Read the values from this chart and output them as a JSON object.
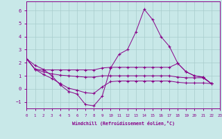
{
  "background_color": "#c8e8e8",
  "line_color": "#880088",
  "grid_color": "#a8cccc",
  "xlabel": "Windchill (Refroidissement éolien,°C)",
  "xlim": [
    0,
    23
  ],
  "ylim": [
    -1.5,
    6.7
  ],
  "xticks": [
    0,
    1,
    2,
    3,
    4,
    5,
    6,
    7,
    8,
    9,
    10,
    11,
    12,
    13,
    14,
    15,
    16,
    17,
    18,
    19,
    20,
    21,
    22,
    23
  ],
  "yticks": [
    -1,
    0,
    1,
    2,
    3,
    4,
    5,
    6
  ],
  "series": [
    {
      "x": [
        0,
        1,
        2,
        3,
        4,
        5,
        6,
        7,
        8,
        9,
        10,
        11,
        12,
        13,
        14,
        15,
        16,
        17,
        18,
        19,
        20,
        21,
        22
      ],
      "y": [
        2.3,
        1.8,
        1.5,
        1.0,
        0.3,
        -0.2,
        -0.4,
        -1.2,
        -1.3,
        -0.55,
        1.6,
        2.65,
        3.0,
        4.35,
        6.1,
        5.3,
        4.0,
        3.25,
        1.95,
        1.3,
        1.0,
        0.9,
        0.4
      ]
    },
    {
      "x": [
        0,
        1,
        2,
        3,
        4,
        5,
        6,
        7,
        8,
        9,
        10,
        11,
        12,
        13,
        14,
        15,
        16,
        17,
        18,
        19,
        20,
        21,
        22
      ],
      "y": [
        2.3,
        1.5,
        1.45,
        1.45,
        1.45,
        1.45,
        1.45,
        1.45,
        1.45,
        1.6,
        1.65,
        1.65,
        1.65,
        1.65,
        1.65,
        1.65,
        1.65,
        1.65,
        1.95,
        1.3,
        1.0,
        0.9,
        0.4
      ]
    },
    {
      "x": [
        0,
        1,
        2,
        3,
        4,
        5,
        6,
        7,
        8,
        9,
        10,
        11,
        12,
        13,
        14,
        15,
        16,
        17,
        18,
        19,
        20,
        21,
        22
      ],
      "y": [
        2.3,
        1.5,
        1.3,
        1.15,
        1.05,
        1.0,
        0.95,
        0.9,
        0.9,
        1.0,
        1.0,
        1.0,
        1.0,
        1.0,
        1.0,
        1.0,
        1.0,
        1.0,
        0.9,
        0.85,
        0.85,
        0.85,
        0.4
      ]
    },
    {
      "x": [
        0,
        1,
        2,
        3,
        4,
        5,
        6,
        7,
        8,
        9,
        10,
        11,
        12,
        13,
        14,
        15,
        16,
        17,
        18,
        19,
        20,
        21,
        22
      ],
      "y": [
        2.3,
        1.5,
        1.1,
        0.8,
        0.4,
        0.05,
        -0.1,
        -0.3,
        -0.35,
        0.15,
        0.55,
        0.6,
        0.6,
        0.6,
        0.6,
        0.6,
        0.6,
        0.6,
        0.5,
        0.45,
        0.45,
        0.45,
        0.4
      ]
    }
  ]
}
